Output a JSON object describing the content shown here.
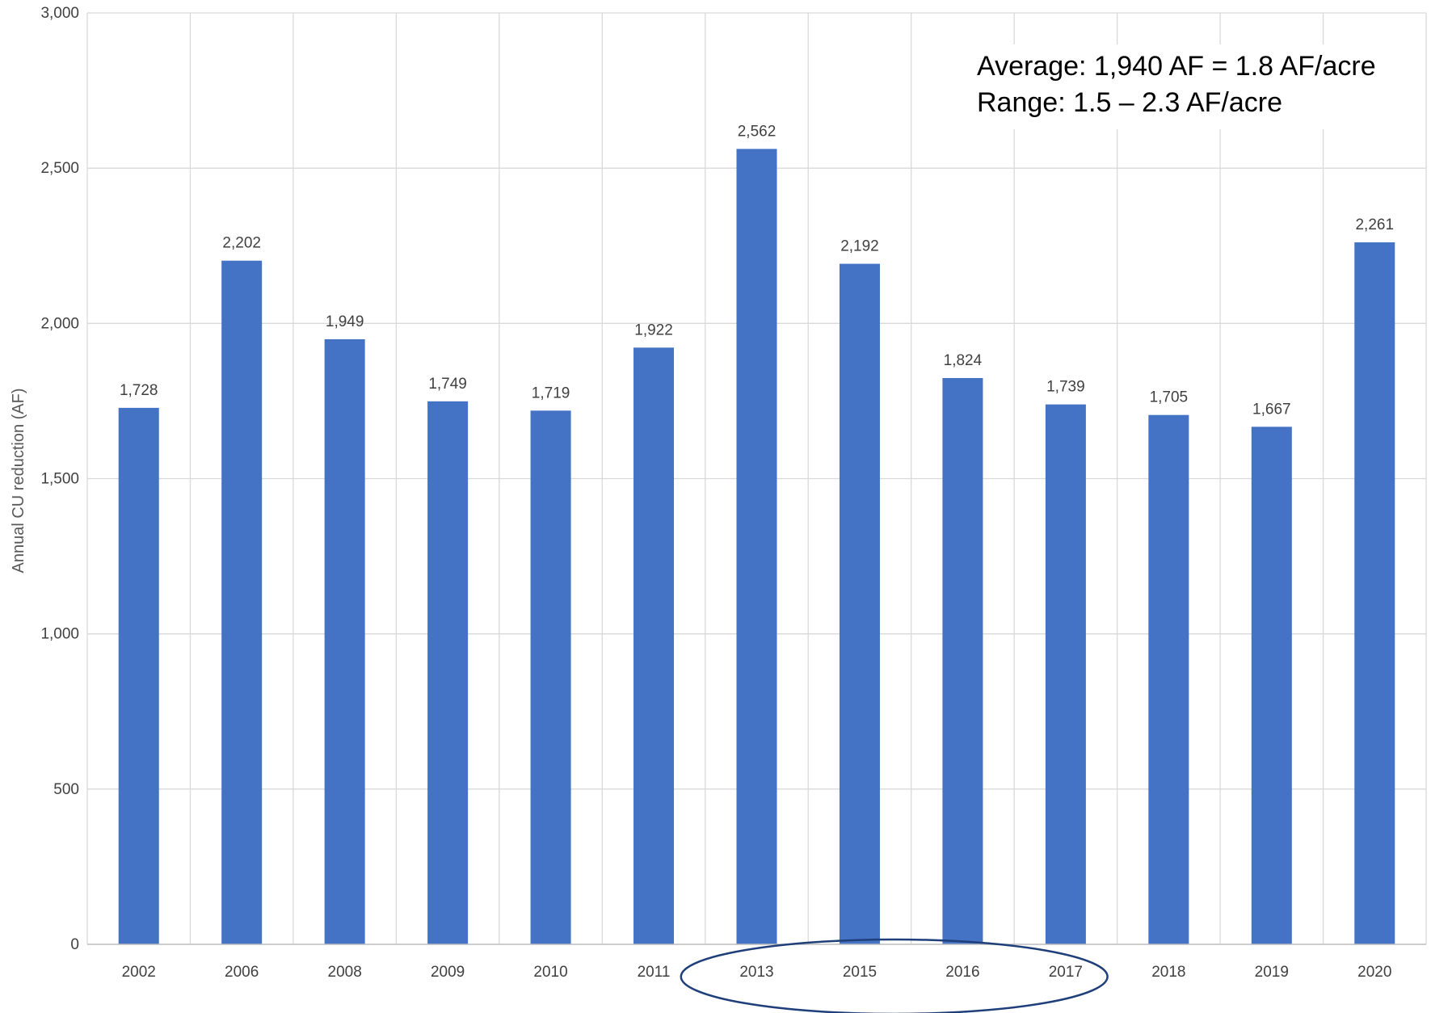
{
  "chart_data": {
    "type": "bar",
    "title": "",
    "xlabel": "",
    "ylabel": "Annual CU reduction (AF)",
    "categories": [
      "2002",
      "2006",
      "2008",
      "2009",
      "2010",
      "2011",
      "2013",
      "2015",
      "2016",
      "2017",
      "2018",
      "2019",
      "2020"
    ],
    "values": [
      1728,
      2202,
      1949,
      1749,
      1719,
      1922,
      2562,
      2192,
      1824,
      1739,
      1705,
      1667,
      2261
    ],
    "data_labels": [
      "1,728",
      "2,202",
      "1,949",
      "1,749",
      "1,719",
      "1,922",
      "2,562",
      "2,192",
      "1,824",
      "1,739",
      "1,705",
      "1,667",
      "2,261"
    ],
    "ylim": [
      0,
      3000
    ],
    "yticks": [
      0,
      500,
      1000,
      1500,
      2000,
      2500,
      3000
    ],
    "ytick_labels": [
      "0",
      "500",
      "1,000",
      "1,500",
      "2,000",
      "2,500",
      "3,000"
    ],
    "grid": true,
    "legend": "none",
    "bar_color": "#4472C4",
    "annotations": [
      "Average:  1,940 AF = 1.8 AF/acre",
      "Range:  1.5 – 2.3 AF/acre"
    ],
    "highlight": {
      "shape": "ellipse",
      "categories": [
        "2013",
        "2015",
        "2016",
        "2017"
      ],
      "color": "#1F3F7A"
    }
  }
}
